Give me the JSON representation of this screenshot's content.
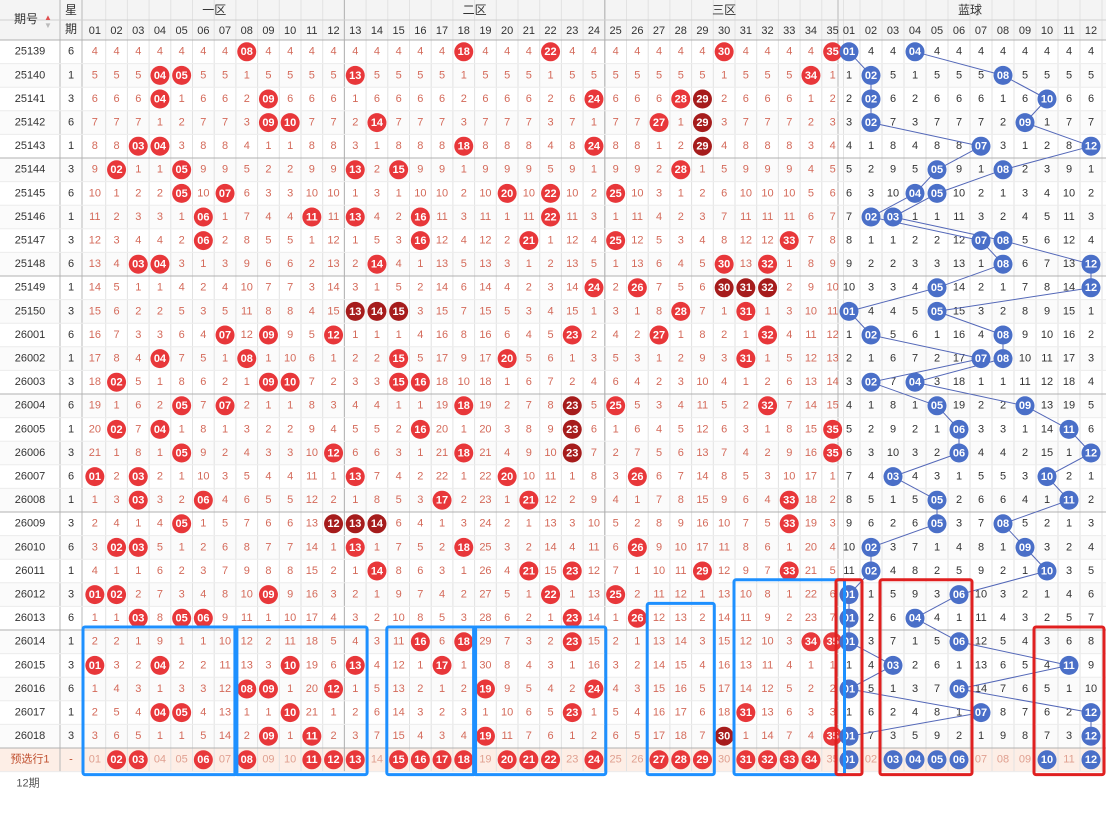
{
  "header": {
    "period_label": "期号",
    "week_label_top": "星",
    "week_label_bottom": "期",
    "zone_labels": [
      "一区",
      "二区",
      "三区",
      "蓝球"
    ]
  },
  "columns": {
    "red": [
      "01",
      "02",
      "03",
      "04",
      "05",
      "06",
      "07",
      "08",
      "09",
      "10",
      "11",
      "12",
      "13",
      "14",
      "15",
      "16",
      "17",
      "18",
      "19",
      "20",
      "21",
      "22",
      "23",
      "24",
      "25",
      "26",
      "27",
      "28",
      "29",
      "30",
      "31",
      "32",
      "33",
      "34",
      "35"
    ],
    "blue": [
      "01",
      "02",
      "03",
      "04",
      "05",
      "06",
      "07",
      "08",
      "09",
      "10",
      "11",
      "12"
    ]
  },
  "footer": {
    "row_label": "预选行1",
    "week": "-",
    "partial_label": "12期"
  },
  "colors": {
    "red_ball": "#e8373a",
    "dark_red_ball": "#a61c1c",
    "blue_ball": "#4a6fc8",
    "blue_box": "#1e90ff",
    "red_box": "#e02020",
    "dark_ball": "#8b1a1a"
  },
  "chart_data": {
    "type": "table",
    "title": "",
    "rows": [
      {
        "period": "25139",
        "week": "6",
        "red": [
          8,
          18,
          22,
          30,
          35
        ],
        "dark": [],
        "blue": [
          1,
          4
        ]
      },
      {
        "period": "25140",
        "week": "1",
        "red": [
          4,
          5,
          13,
          34
        ],
        "dark": [],
        "blue": [
          2,
          8
        ]
      },
      {
        "period": "25141",
        "week": "3",
        "red": [
          4,
          9,
          24,
          28
        ],
        "dark": [
          29
        ],
        "blue": [
          2,
          10
        ]
      },
      {
        "period": "25142",
        "week": "6",
        "red": [
          9,
          10,
          14,
          27
        ],
        "dark": [
          29
        ],
        "blue": [
          2,
          9
        ]
      },
      {
        "period": "25143",
        "week": "1",
        "red": [
          3,
          4,
          18,
          24
        ],
        "dark": [
          29
        ],
        "blue": [
          7,
          12
        ]
      },
      {
        "period": "25144",
        "week": "3",
        "red": [
          2,
          5,
          13,
          15,
          28
        ],
        "dark": [],
        "blue": [
          5,
          8
        ]
      },
      {
        "period": "25145",
        "week": "6",
        "red": [
          5,
          7,
          20,
          22,
          25
        ],
        "dark": [],
        "blue": [
          4,
          5
        ]
      },
      {
        "period": "25146",
        "week": "1",
        "red": [
          6,
          11,
          13,
          16,
          22
        ],
        "dark": [],
        "blue": [
          2,
          3
        ]
      },
      {
        "period": "25147",
        "week": "3",
        "red": [
          6,
          16,
          21,
          25,
          33
        ],
        "dark": [],
        "blue": [
          7,
          8
        ]
      },
      {
        "period": "25148",
        "week": "6",
        "red": [
          3,
          4,
          14,
          30,
          32
        ],
        "dark": [],
        "blue": [
          8,
          12
        ]
      },
      {
        "period": "25149",
        "week": "1",
        "red": [
          24,
          26
        ],
        "dark": [
          30,
          31,
          32
        ],
        "blue": [
          5,
          12
        ]
      },
      {
        "period": "25150",
        "week": "3",
        "red": [
          28,
          31
        ],
        "dark": [
          13,
          14,
          15
        ],
        "blue": [
          1,
          5
        ]
      },
      {
        "period": "26001",
        "week": "6",
        "red": [
          7,
          12,
          9,
          23,
          27,
          32
        ],
        "dark": [],
        "blue": [
          2,
          8
        ]
      },
      {
        "period": "26002",
        "week": "1",
        "red": [
          4,
          8,
          15,
          20,
          31
        ],
        "dark": [],
        "blue": [
          7,
          8
        ]
      },
      {
        "period": "26003",
        "week": "3",
        "red": [
          2,
          9,
          10,
          15,
          16
        ],
        "dark": [],
        "blue": [
          2,
          4
        ]
      },
      {
        "period": "26004",
        "week": "6",
        "red": [
          5,
          7,
          18,
          25,
          32
        ],
        "dark": [
          23
        ],
        "blue": [
          5,
          9
        ]
      },
      {
        "period": "26005",
        "week": "1",
        "red": [
          2,
          4,
          16,
          35
        ],
        "dark": [
          23
        ],
        "blue": [
          6,
          11
        ]
      },
      {
        "period": "26006",
        "week": "3",
        "red": [
          5,
          12,
          18,
          35
        ],
        "dark": [
          23
        ],
        "blue": [
          6,
          12
        ]
      },
      {
        "period": "26007",
        "week": "6",
        "red": [
          1,
          3,
          13,
          20,
          26
        ],
        "dark": [],
        "blue": [
          3,
          10
        ]
      },
      {
        "period": "26008",
        "week": "1",
        "red": [
          3,
          6,
          17,
          21,
          33
        ],
        "dark": [],
        "blue": [
          5,
          11
        ]
      },
      {
        "period": "26009",
        "week": "3",
        "red": [
          5,
          33
        ],
        "dark": [
          12,
          13,
          14
        ],
        "blue": [
          5,
          8
        ]
      },
      {
        "period": "26010",
        "week": "6",
        "red": [
          2,
          3,
          13,
          18,
          26
        ],
        "dark": [],
        "blue": [
          2,
          9
        ]
      },
      {
        "period": "26011",
        "week": "1",
        "red": [
          14,
          21,
          23,
          29,
          33
        ],
        "dark": [],
        "blue": [
          2,
          10
        ]
      },
      {
        "period": "26012",
        "week": "3",
        "red": [
          1,
          2,
          9,
          22,
          25
        ],
        "dark": [],
        "blue": [
          1,
          6
        ]
      },
      {
        "period": "26013",
        "week": "6",
        "red": [
          3,
          5,
          6,
          23,
          26
        ],
        "dark": [],
        "blue": [
          1,
          4
        ]
      },
      {
        "period": "26014",
        "week": "1",
        "red": [
          16,
          18,
          23,
          34,
          35
        ],
        "dark": [],
        "blue": [
          1,
          6
        ]
      },
      {
        "period": "26015",
        "week": "3",
        "red": [
          1,
          4,
          10,
          13,
          17
        ],
        "dark": [],
        "blue": [
          3,
          11
        ]
      },
      {
        "period": "26016",
        "week": "6",
        "red": [
          8,
          9,
          12,
          19,
          24
        ],
        "dark": [],
        "blue": [
          1,
          6
        ]
      },
      {
        "period": "26017",
        "week": "1",
        "red": [
          4,
          5,
          10,
          23,
          31
        ],
        "dark": [],
        "blue": [
          7,
          12
        ]
      },
      {
        "period": "26018",
        "week": "3",
        "red": [
          9,
          11,
          19,
          35
        ],
        "dark": [
          30
        ],
        "blue": [
          1,
          12
        ]
      }
    ],
    "preselect": {
      "red": [
        2,
        3,
        6,
        8,
        11,
        12,
        13,
        15,
        16,
        17,
        18,
        20,
        21,
        22,
        24,
        27,
        28,
        29,
        31,
        32,
        33,
        34
      ],
      "blue": [
        1,
        3,
        4,
        5,
        6,
        10,
        12
      ]
    }
  }
}
